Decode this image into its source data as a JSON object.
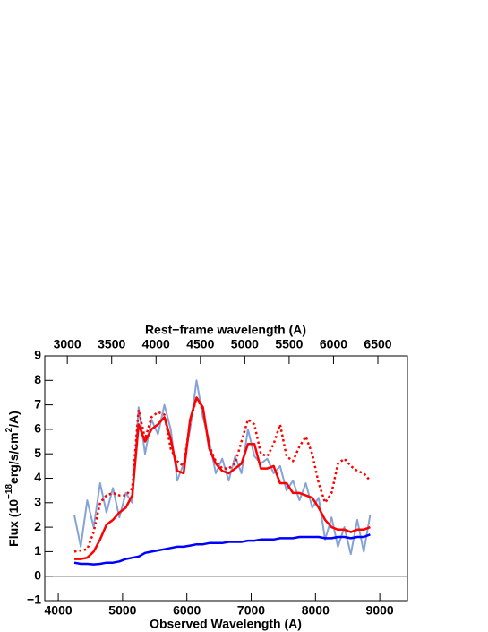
{
  "chart_data": {
    "type": "line",
    "xlabel": "Observed Wavelength (A)",
    "x2label": "Rest−frame wavelength (A)",
    "ylabel_parts": [
      "Flux (10",
      "−18",
      "erg/s/cm",
      "2",
      "/A)"
    ],
    "x": [
      4250,
      4350,
      4450,
      4550,
      4650,
      4750,
      4850,
      4950,
      5050,
      5150,
      5250,
      5350,
      5450,
      5550,
      5650,
      5750,
      5850,
      5950,
      6050,
      6150,
      6250,
      6350,
      6450,
      6550,
      6650,
      6750,
      6850,
      6950,
      7050,
      7150,
      7250,
      7350,
      7450,
      7550,
      7650,
      7750,
      7850,
      7950,
      8050,
      8150,
      8250,
      8350,
      8450,
      8550,
      8650,
      8750,
      8850
    ],
    "series": [
      {
        "color": "#85a3d6",
        "width": 2,
        "dash": false,
        "values": [
          2.5,
          1.2,
          3.1,
          2.0,
          3.8,
          2.6,
          3.6,
          2.4,
          3.4,
          3.0,
          6.9,
          5.0,
          6.4,
          5.8,
          7.0,
          6.0,
          3.9,
          4.6,
          6.0,
          8.0,
          6.5,
          5.5,
          4.2,
          4.8,
          3.9,
          4.9,
          4.2,
          6.0,
          4.9,
          4.6,
          4.8,
          4.2,
          4.5,
          3.5,
          3.9,
          3.1,
          3.8,
          2.8,
          3.2,
          1.5,
          2.4,
          1.2,
          2.0,
          0.9,
          2.3,
          1.0,
          2.5
        ]
      },
      {
        "color": "#ff0000",
        "width": 2.5,
        "dash": true,
        "values": [
          1.0,
          1.05,
          1.1,
          1.8,
          3.0,
          3.3,
          3.4,
          3.3,
          3.3,
          3.6,
          6.8,
          5.6,
          6.5,
          6.7,
          6.6,
          5.2,
          4.7,
          4.5,
          6.3,
          7.3,
          6.8,
          5.3,
          4.7,
          4.4,
          4.4,
          4.6,
          5.5,
          6.4,
          6.2,
          5.0,
          4.9,
          5.4,
          6.2,
          4.9,
          4.7,
          5.3,
          5.7,
          5.0,
          3.8,
          3.0,
          3.4,
          4.6,
          4.8,
          4.5,
          4.3,
          4.2,
          3.9
        ]
      },
      {
        "color": "#ff0000",
        "width": 2.5,
        "dash": false,
        "values": [
          0.7,
          0.7,
          0.75,
          1.0,
          1.5,
          2.1,
          2.3,
          2.6,
          2.8,
          3.3,
          6.2,
          5.5,
          6.0,
          6.2,
          6.5,
          5.6,
          4.3,
          4.2,
          6.4,
          7.3,
          6.9,
          5.2,
          4.6,
          4.3,
          4.2,
          4.4,
          4.6,
          5.4,
          5.4,
          4.4,
          4.4,
          4.5,
          3.8,
          3.8,
          3.4,
          3.4,
          3.3,
          3.2,
          2.8,
          2.3,
          2.0,
          1.9,
          1.9,
          1.8,
          1.9,
          1.9,
          2.0
        ]
      },
      {
        "color": "#0000ff",
        "width": 2.5,
        "dash": false,
        "values": [
          0.55,
          0.5,
          0.5,
          0.48,
          0.5,
          0.55,
          0.55,
          0.6,
          0.7,
          0.75,
          0.8,
          0.95,
          1.0,
          1.05,
          1.1,
          1.15,
          1.2,
          1.2,
          1.25,
          1.3,
          1.3,
          1.35,
          1.35,
          1.35,
          1.4,
          1.4,
          1.4,
          1.45,
          1.45,
          1.5,
          1.5,
          1.5,
          1.55,
          1.55,
          1.55,
          1.6,
          1.6,
          1.6,
          1.6,
          1.55,
          1.55,
          1.6,
          1.6,
          1.55,
          1.6,
          1.6,
          1.7
        ]
      }
    ],
    "hline": 0,
    "xlim": [
      3790,
      9430
    ],
    "xticks": [
      4000,
      5000,
      6000,
      7000,
      8000,
      9000
    ],
    "x2lim": [
      2746,
      6833
    ],
    "x2ticks": [
      3000,
      3500,
      4000,
      4500,
      5000,
      5500,
      6000,
      6500
    ],
    "ylim": [
      -1,
      9
    ],
    "yticks": [
      {
        "value": -1,
        "label": "−1"
      },
      0,
      1,
      2,
      3,
      4,
      5,
      6,
      7,
      8,
      9
    ]
  }
}
